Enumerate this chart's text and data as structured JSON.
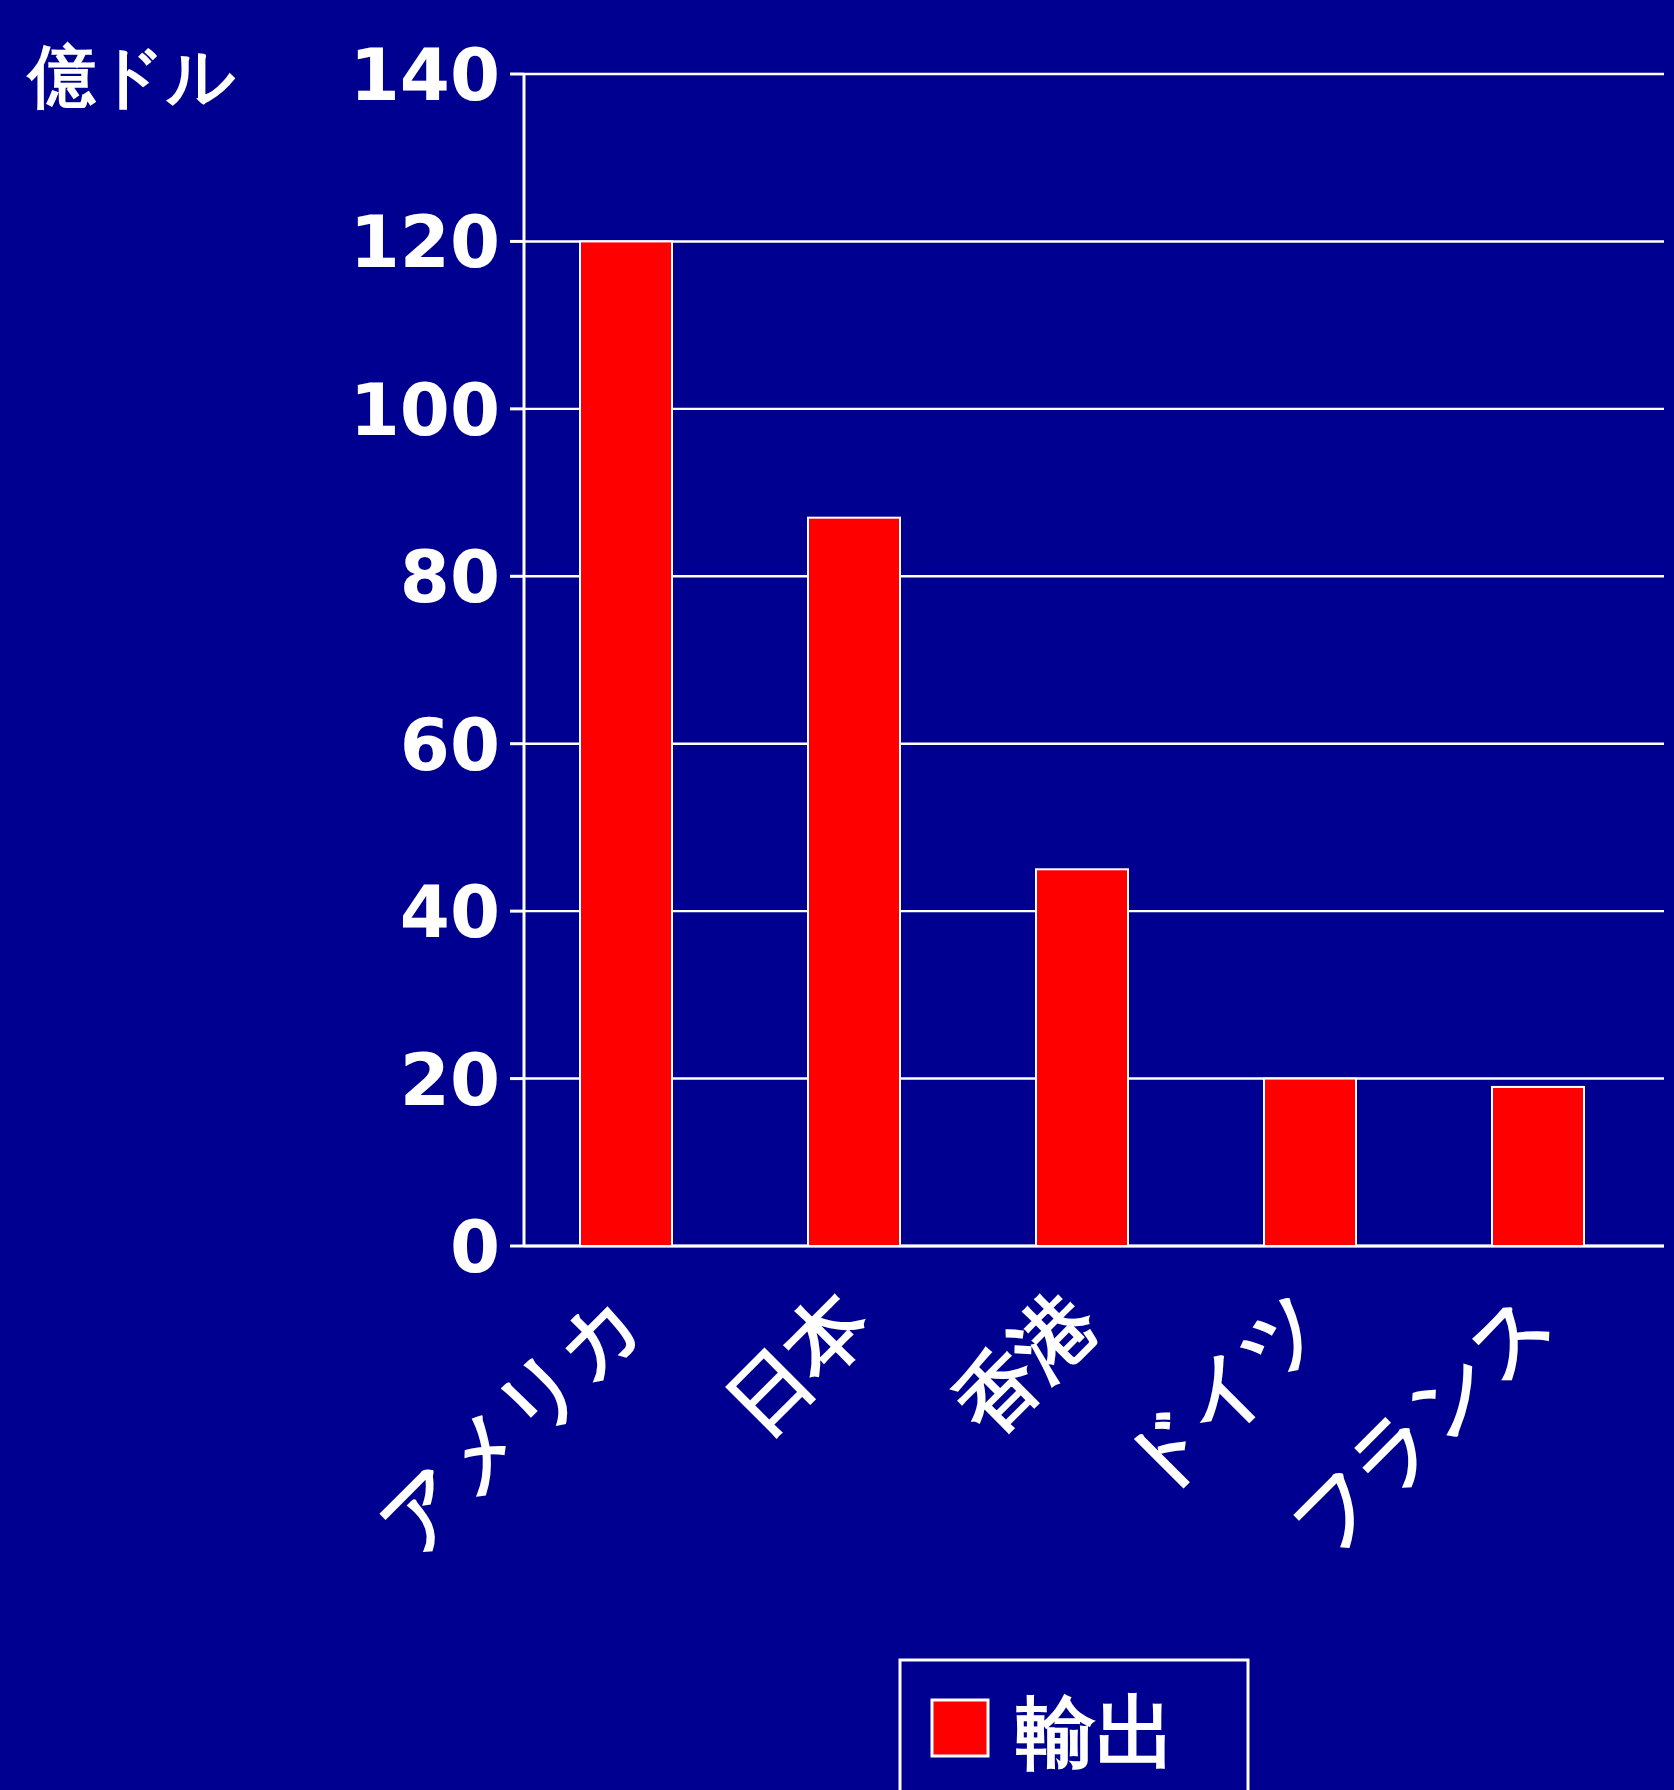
{
  "chart_data": {
    "type": "bar",
    "ylabel": "億ドル",
    "categories": [
      "アメリカ",
      "日本",
      "香港",
      "ドイツ",
      "フランス"
    ],
    "series": [
      {
        "name": "輸出",
        "color": "#ff0000",
        "values": [
          120,
          87,
          45,
          20,
          19
        ]
      }
    ],
    "ylim": [
      0,
      140
    ],
    "yticks": [
      0,
      20,
      40,
      60,
      80,
      100,
      120,
      140
    ],
    "grid": "y",
    "legend": "bottom"
  }
}
